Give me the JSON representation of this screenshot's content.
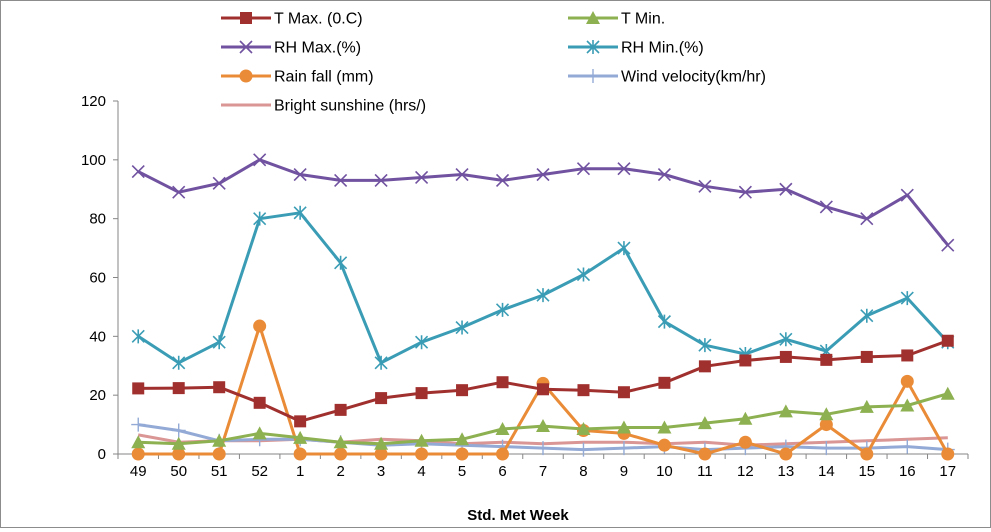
{
  "chart_data": {
    "type": "line",
    "title": "",
    "xlabel": "Std. Met Week",
    "ylabel": "",
    "categories": [
      "49",
      "50",
      "51",
      "52",
      "1",
      "2",
      "3",
      "4",
      "5",
      "6",
      "7",
      "8",
      "9",
      "10",
      "11",
      "12",
      "13",
      "14",
      "15",
      "16",
      "17"
    ],
    "ylim": [
      0,
      120
    ],
    "yticks": [
      0,
      20,
      40,
      60,
      80,
      100,
      120
    ],
    "grid": false,
    "legend_position": "top",
    "series": [
      {
        "name": "T Max. (0.C)",
        "color": "#A0302E",
        "marker": "square",
        "values": [
          22.3,
          22.4,
          22.7,
          17.4,
          11.1,
          15.0,
          19.0,
          20.7,
          21.7,
          24.4,
          22.0,
          21.7,
          21.0,
          24.2,
          29.8,
          31.8,
          33.0,
          32.0,
          33.0,
          33.5,
          38.5
        ]
      },
      {
        "name": "T Min.",
        "color": "#8DB051",
        "marker": "triangle",
        "values": [
          4.0,
          3.5,
          4.5,
          7.0,
          5.5,
          4.0,
          3.5,
          4.5,
          5.0,
          8.5,
          9.5,
          8.5,
          9.0,
          9.0,
          10.5,
          12.0,
          14.5,
          13.5,
          16.0,
          16.5,
          20.5
        ]
      },
      {
        "name": "RH  Max.(%)",
        "color": "#7052A0",
        "marker": "x",
        "values": [
          96,
          89,
          92,
          100,
          95,
          93,
          93,
          94,
          95,
          93,
          95,
          97,
          97,
          95,
          91,
          89,
          90,
          84,
          80,
          88,
          71
        ]
      },
      {
        "name": "RH Min.(%)",
        "color": "#3A9DB5",
        "marker": "asterisk",
        "values": [
          40,
          31,
          38,
          80,
          82,
          65,
          31,
          38,
          43,
          49,
          54,
          61,
          70,
          45,
          37,
          34,
          39,
          35,
          47,
          53,
          38
        ]
      },
      {
        "name": "Rain fall (mm)",
        "color": "#E98B37",
        "marker": "circle",
        "values": [
          0,
          0,
          0,
          43.5,
          0,
          0,
          0,
          0,
          0,
          0,
          24,
          8,
          7,
          3,
          0,
          4,
          0,
          10,
          0,
          24.7,
          0
        ]
      },
      {
        "name": "Wind velocity(km/hr)",
        "color": "#93AAD6",
        "marker": "plus",
        "values": [
          10,
          8,
          4.5,
          5,
          5,
          4,
          3,
          3.5,
          3,
          2.5,
          2,
          1.5,
          2,
          2.5,
          1.5,
          2,
          2.5,
          2,
          2,
          2.5,
          1.5
        ]
      },
      {
        "name": "Bright sunshine (hrs/)",
        "color": "#D99694",
        "marker": "none",
        "values": [
          6.5,
          4,
          4.5,
          4.5,
          5,
          4,
          5,
          4.5,
          3.5,
          4,
          3.5,
          4,
          4,
          3.5,
          4,
          3,
          3.5,
          4,
          4.5,
          5,
          5.5
        ]
      }
    ]
  }
}
